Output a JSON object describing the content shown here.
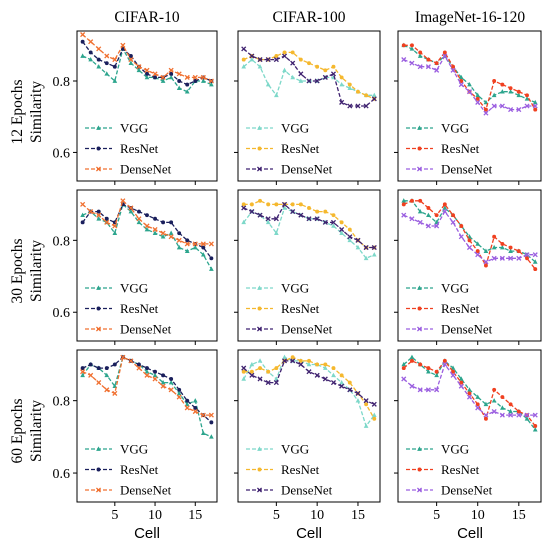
{
  "figure": {
    "column_titles": [
      "CIFAR-10",
      "CIFAR-100",
      "ImageNet-16-120"
    ],
    "row_labels": [
      {
        "epochs": "12 Epochs",
        "ylabel": "Similarity"
      },
      {
        "epochs": "30 Epochs",
        "ylabel": "Similarity"
      },
      {
        "epochs": "60 Epochs",
        "ylabel": "Similarity"
      }
    ],
    "xlabel": "Cell",
    "x_ticks": [
      5,
      10,
      15
    ],
    "y_ticks": [
      0.6,
      0.8
    ],
    "x_range": [
      0.3,
      17.7
    ],
    "y_range": [
      0.52,
      0.94
    ]
  },
  "chart_data": [
    {
      "type": "line",
      "title": "CIFAR-10",
      "row": "12 Epochs",
      "xlabel": "Cell",
      "ylabel": "Similarity",
      "x": [
        1,
        2,
        3,
        4,
        5,
        6,
        7,
        8,
        9,
        10,
        11,
        12,
        13,
        14,
        15,
        16,
        17
      ],
      "legend": "bottom-left",
      "series": [
        {
          "name": "VGG",
          "color": "#2ca58d",
          "marker": "triangle",
          "values": [
            0.87,
            0.86,
            0.84,
            0.82,
            0.8,
            0.89,
            0.85,
            0.83,
            0.81,
            0.81,
            0.8,
            0.81,
            0.78,
            0.77,
            0.8,
            0.8,
            0.79
          ]
        },
        {
          "name": "ResNet",
          "color": "#1a1f5c",
          "marker": "circle",
          "values": [
            0.91,
            0.88,
            0.86,
            0.85,
            0.84,
            0.89,
            0.87,
            0.84,
            0.82,
            0.81,
            0.81,
            0.82,
            0.8,
            0.79,
            0.8,
            0.81,
            0.8
          ]
        },
        {
          "name": "DenseNet",
          "color": "#f07030",
          "marker": "x",
          "values": [
            0.93,
            0.91,
            0.89,
            0.87,
            0.86,
            0.9,
            0.86,
            0.84,
            0.83,
            0.82,
            0.81,
            0.83,
            0.82,
            0.81,
            0.81,
            0.81,
            0.8
          ]
        }
      ]
    },
    {
      "type": "line",
      "title": "CIFAR-100",
      "row": "12 Epochs",
      "xlabel": "Cell",
      "ylabel": "Similarity",
      "x": [
        1,
        2,
        3,
        4,
        5,
        6,
        7,
        8,
        9,
        10,
        11,
        12,
        13,
        14,
        15,
        16,
        17
      ],
      "legend": "bottom-left",
      "series": [
        {
          "name": "VGG",
          "color": "#7dd8c9",
          "marker": "triangle",
          "values": [
            0.84,
            0.86,
            0.84,
            0.79,
            0.76,
            0.83,
            0.81,
            0.8,
            0.8,
            0.8,
            0.81,
            0.81,
            0.79,
            0.78,
            0.77,
            0.76,
            0.76
          ]
        },
        {
          "name": "ResNet",
          "color": "#f5b82e",
          "marker": "circle",
          "values": [
            0.86,
            0.87,
            0.86,
            0.86,
            0.87,
            0.88,
            0.88,
            0.86,
            0.85,
            0.84,
            0.83,
            0.84,
            0.81,
            0.79,
            0.77,
            0.76,
            0.75
          ]
        },
        {
          "name": "DenseNet",
          "color": "#3f2270",
          "marker": "x",
          "values": [
            0.89,
            0.87,
            0.86,
            0.86,
            0.86,
            0.87,
            0.85,
            0.82,
            0.8,
            0.8,
            0.81,
            0.82,
            0.74,
            0.73,
            0.73,
            0.73,
            0.75
          ]
        }
      ]
    },
    {
      "type": "line",
      "title": "ImageNet-16-120",
      "row": "12 Epochs",
      "xlabel": "Cell",
      "ylabel": "Similarity",
      "x": [
        1,
        2,
        3,
        4,
        5,
        6,
        7,
        8,
        9,
        10,
        11,
        12,
        13,
        14,
        15,
        16,
        17
      ],
      "legend": "bottom-left",
      "series": [
        {
          "name": "VGG",
          "color": "#2ca58d",
          "marker": "triangle",
          "values": [
            0.9,
            0.89,
            0.87,
            0.86,
            0.85,
            0.87,
            0.84,
            0.81,
            0.79,
            0.76,
            0.74,
            0.76,
            0.77,
            0.77,
            0.76,
            0.75,
            0.74
          ]
        },
        {
          "name": "ResNet",
          "color": "#f04020",
          "marker": "circle",
          "values": [
            0.9,
            0.9,
            0.88,
            0.86,
            0.85,
            0.88,
            0.84,
            0.8,
            0.77,
            0.75,
            0.72,
            0.8,
            0.79,
            0.78,
            0.77,
            0.76,
            0.72
          ]
        },
        {
          "name": "DenseNet",
          "color": "#9b5fe0",
          "marker": "x",
          "values": [
            0.86,
            0.85,
            0.84,
            0.84,
            0.83,
            0.87,
            0.83,
            0.79,
            0.77,
            0.74,
            0.71,
            0.73,
            0.73,
            0.72,
            0.72,
            0.73,
            0.73
          ]
        }
      ]
    },
    {
      "type": "line",
      "title": "CIFAR-10",
      "row": "30 Epochs",
      "xlabel": "Cell",
      "ylabel": "Similarity",
      "x": [
        1,
        2,
        3,
        4,
        5,
        6,
        7,
        8,
        9,
        10,
        11,
        12,
        13,
        14,
        15,
        16,
        17
      ],
      "legend": "bottom-left",
      "series": [
        {
          "name": "VGG",
          "color": "#2ca58d",
          "marker": "triangle",
          "values": [
            0.87,
            0.88,
            0.86,
            0.85,
            0.82,
            0.9,
            0.88,
            0.85,
            0.83,
            0.82,
            0.81,
            0.82,
            0.78,
            0.77,
            0.78,
            0.76,
            0.72
          ]
        },
        {
          "name": "ResNet",
          "color": "#1a1f5c",
          "marker": "circle",
          "values": [
            0.85,
            0.88,
            0.88,
            0.86,
            0.85,
            0.9,
            0.89,
            0.88,
            0.87,
            0.86,
            0.85,
            0.85,
            0.82,
            0.8,
            0.79,
            0.78,
            0.75
          ]
        },
        {
          "name": "DenseNet",
          "color": "#f07030",
          "marker": "x",
          "values": [
            0.9,
            0.88,
            0.87,
            0.85,
            0.84,
            0.91,
            0.89,
            0.86,
            0.84,
            0.83,
            0.82,
            0.81,
            0.8,
            0.79,
            0.79,
            0.79,
            0.79
          ]
        }
      ]
    },
    {
      "type": "line",
      "title": "CIFAR-100",
      "row": "30 Epochs",
      "xlabel": "Cell",
      "ylabel": "Similarity",
      "x": [
        1,
        2,
        3,
        4,
        5,
        6,
        7,
        8,
        9,
        10,
        11,
        12,
        13,
        14,
        15,
        16,
        17
      ],
      "legend": "bottom-left",
      "series": [
        {
          "name": "VGG",
          "color": "#7dd8c9",
          "marker": "triangle",
          "values": [
            0.85,
            0.88,
            0.87,
            0.85,
            0.82,
            0.89,
            0.88,
            0.87,
            0.86,
            0.86,
            0.85,
            0.84,
            0.82,
            0.8,
            0.78,
            0.75,
            0.76
          ]
        },
        {
          "name": "ResNet",
          "color": "#f5b82e",
          "marker": "circle",
          "values": [
            0.9,
            0.9,
            0.91,
            0.9,
            0.9,
            0.9,
            0.9,
            0.9,
            0.89,
            0.88,
            0.88,
            0.87,
            0.85,
            0.83,
            0.8,
            0.78,
            0.78
          ]
        },
        {
          "name": "DenseNet",
          "color": "#3f2270",
          "marker": "x",
          "values": [
            0.89,
            0.88,
            0.87,
            0.86,
            0.86,
            0.9,
            0.88,
            0.87,
            0.86,
            0.86,
            0.85,
            0.85,
            0.83,
            0.81,
            0.8,
            0.78,
            0.78
          ]
        }
      ]
    },
    {
      "type": "line",
      "title": "ImageNet-16-120",
      "row": "30 Epochs",
      "xlabel": "Cell",
      "ylabel": "Similarity",
      "x": [
        1,
        2,
        3,
        4,
        5,
        6,
        7,
        8,
        9,
        10,
        11,
        12,
        13,
        14,
        15,
        16,
        17
      ],
      "legend": "bottom-left",
      "series": [
        {
          "name": "VGG",
          "color": "#2ca58d",
          "marker": "triangle",
          "values": [
            0.91,
            0.91,
            0.88,
            0.87,
            0.85,
            0.89,
            0.87,
            0.84,
            0.81,
            0.79,
            0.77,
            0.78,
            0.78,
            0.77,
            0.77,
            0.76,
            0.74
          ]
        },
        {
          "name": "ResNet",
          "color": "#f04020",
          "marker": "circle",
          "values": [
            0.9,
            0.91,
            0.91,
            0.89,
            0.87,
            0.9,
            0.87,
            0.84,
            0.8,
            0.77,
            0.73,
            0.81,
            0.79,
            0.78,
            0.77,
            0.75,
            0.72
          ]
        },
        {
          "name": "DenseNet",
          "color": "#9b5fe0",
          "marker": "x",
          "values": [
            0.87,
            0.86,
            0.85,
            0.84,
            0.84,
            0.88,
            0.85,
            0.81,
            0.78,
            0.76,
            0.74,
            0.75,
            0.75,
            0.75,
            0.75,
            0.76,
            0.76
          ]
        }
      ]
    },
    {
      "type": "line",
      "title": "CIFAR-10",
      "row": "60 Epochs",
      "xlabel": "Cell",
      "ylabel": "Similarity",
      "x": [
        1,
        2,
        3,
        4,
        5,
        6,
        7,
        8,
        9,
        10,
        11,
        12,
        13,
        14,
        15,
        16,
        17
      ],
      "legend": "bottom-left",
      "series": [
        {
          "name": "VGG",
          "color": "#2ca58d",
          "marker": "triangle",
          "values": [
            0.87,
            0.9,
            0.89,
            0.87,
            0.84,
            0.92,
            0.91,
            0.9,
            0.88,
            0.87,
            0.85,
            0.85,
            0.82,
            0.79,
            0.8,
            0.71,
            0.7
          ]
        },
        {
          "name": "ResNet",
          "color": "#1a1f5c",
          "marker": "circle",
          "values": [
            0.89,
            0.9,
            0.89,
            0.89,
            0.9,
            0.92,
            0.91,
            0.9,
            0.89,
            0.88,
            0.87,
            0.86,
            0.83,
            0.8,
            0.78,
            0.76,
            0.74
          ]
        },
        {
          "name": "DenseNet",
          "color": "#f07030",
          "marker": "x",
          "values": [
            0.88,
            0.87,
            0.85,
            0.83,
            0.82,
            0.92,
            0.91,
            0.89,
            0.87,
            0.86,
            0.84,
            0.83,
            0.81,
            0.78,
            0.77,
            0.76,
            0.76
          ]
        }
      ]
    },
    {
      "type": "line",
      "title": "CIFAR-100",
      "row": "60 Epochs",
      "xlabel": "Cell",
      "ylabel": "Similarity",
      "x": [
        1,
        2,
        3,
        4,
        5,
        6,
        7,
        8,
        9,
        10,
        11,
        12,
        13,
        14,
        15,
        16,
        17
      ],
      "legend": "bottom-left",
      "series": [
        {
          "name": "VGG",
          "color": "#7dd8c9",
          "marker": "triangle",
          "values": [
            0.86,
            0.9,
            0.91,
            0.88,
            0.86,
            0.92,
            0.91,
            0.91,
            0.9,
            0.9,
            0.89,
            0.87,
            0.85,
            0.83,
            0.8,
            0.73,
            0.76
          ]
        },
        {
          "name": "ResNet",
          "color": "#f5b82e",
          "marker": "circle",
          "values": [
            0.88,
            0.88,
            0.89,
            0.88,
            0.89,
            0.91,
            0.92,
            0.91,
            0.91,
            0.9,
            0.9,
            0.89,
            0.87,
            0.85,
            0.82,
            0.79,
            0.75
          ]
        },
        {
          "name": "DenseNet",
          "color": "#3f2270",
          "marker": "x",
          "values": [
            0.89,
            0.87,
            0.86,
            0.85,
            0.85,
            0.91,
            0.91,
            0.9,
            0.88,
            0.87,
            0.86,
            0.85,
            0.84,
            0.83,
            0.82,
            0.8,
            0.79
          ]
        }
      ]
    },
    {
      "type": "line",
      "title": "ImageNet-16-120",
      "row": "60 Epochs",
      "xlabel": "Cell",
      "ylabel": "Similarity",
      "x": [
        1,
        2,
        3,
        4,
        5,
        6,
        7,
        8,
        9,
        10,
        11,
        12,
        13,
        14,
        15,
        16,
        17
      ],
      "legend": "bottom-left",
      "series": [
        {
          "name": "VGG",
          "color": "#2ca58d",
          "marker": "triangle",
          "values": [
            0.9,
            0.92,
            0.9,
            0.88,
            0.87,
            0.91,
            0.89,
            0.86,
            0.83,
            0.81,
            0.79,
            0.8,
            0.78,
            0.77,
            0.77,
            0.75,
            0.72
          ]
        },
        {
          "name": "ResNet",
          "color": "#f04020",
          "marker": "circle",
          "values": [
            0.89,
            0.91,
            0.9,
            0.89,
            0.88,
            0.91,
            0.88,
            0.85,
            0.82,
            0.79,
            0.75,
            0.83,
            0.81,
            0.79,
            0.77,
            0.76,
            0.73
          ]
        },
        {
          "name": "DenseNet",
          "color": "#9b5fe0",
          "marker": "x",
          "values": [
            0.86,
            0.84,
            0.83,
            0.83,
            0.83,
            0.9,
            0.87,
            0.84,
            0.81,
            0.78,
            0.76,
            0.77,
            0.76,
            0.76,
            0.76,
            0.76,
            0.76
          ]
        }
      ]
    }
  ]
}
